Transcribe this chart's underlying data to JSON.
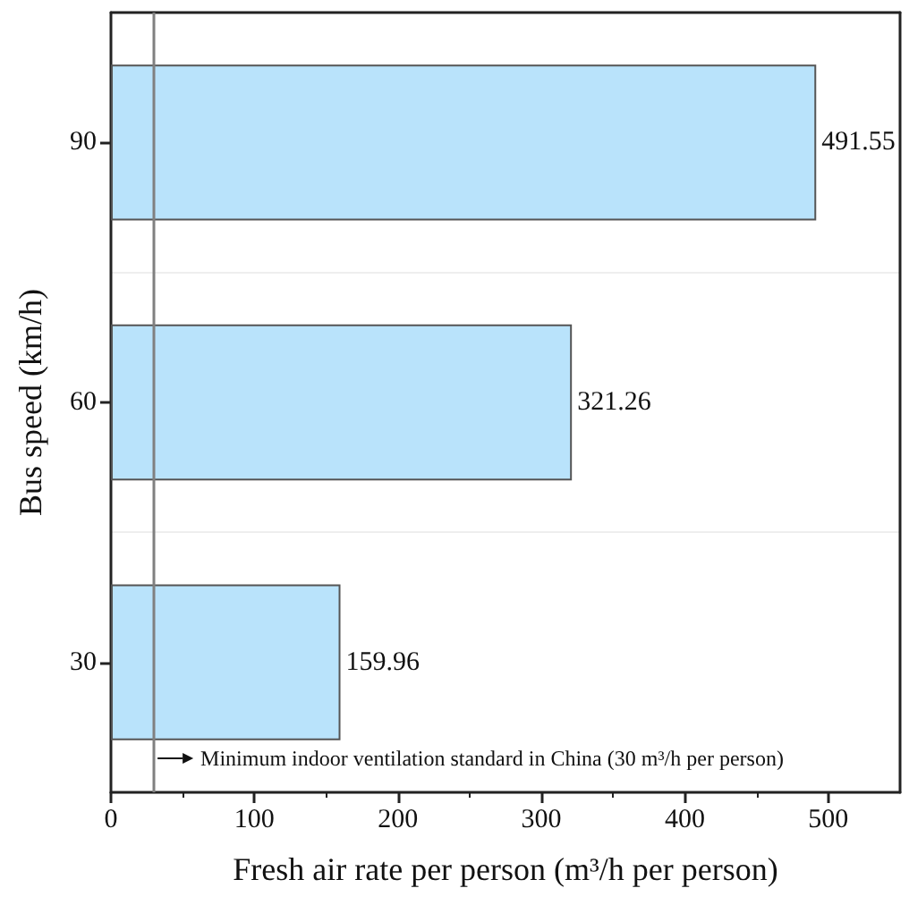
{
  "chart_data": {
    "type": "bar",
    "orientation": "horizontal",
    "xlabel": "Fresh air rate per person (m³/h per person)",
    "ylabel": "Bus speed (km/h)",
    "categories": [
      "90",
      "60",
      "30"
    ],
    "values": [
      491.55,
      321.26,
      159.96
    ],
    "color": "#b9e3fb",
    "data_labels": true,
    "xlim": [
      0,
      550
    ],
    "xticks": [
      0,
      100,
      200,
      300,
      400,
      500
    ],
    "grid": "y",
    "ref_lines": [
      {
        "axis": "x",
        "value": 30,
        "label": "Minimum indoor ventilation standard in China (30 m³/h per person)",
        "color": "#808080"
      }
    ]
  }
}
